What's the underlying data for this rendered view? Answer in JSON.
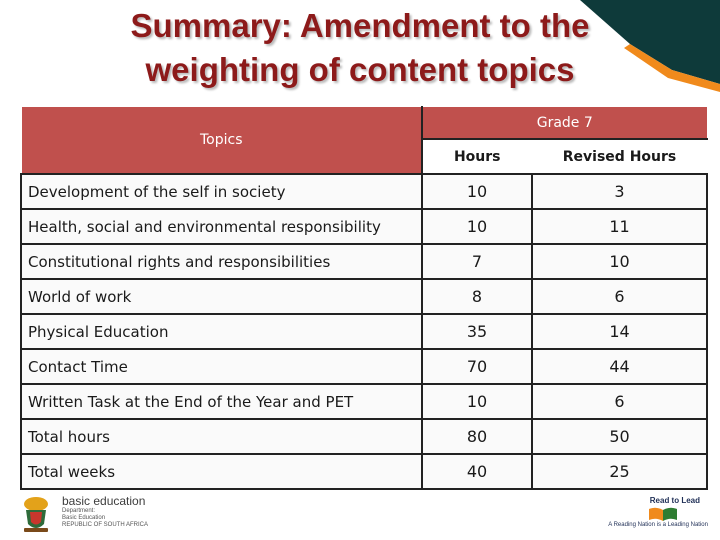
{
  "title": {
    "line1": "Summary: Amendment to the",
    "line2": "weighting of content  topics"
  },
  "table": {
    "header_topics": "Topics",
    "header_grade": "Grade 7",
    "header_hours": "Hours",
    "header_revised": "Revised Hours",
    "rows": [
      {
        "topic": "Development of the self in society",
        "hours": "10",
        "revised": "3"
      },
      {
        "topic": "Health, social and environmental responsibility",
        "hours": "10",
        "revised": "11"
      },
      {
        "topic": "Constitutional rights and responsibilities",
        "hours": "7",
        "revised": "10"
      },
      {
        "topic": "World of work",
        "hours": "8",
        "revised": "6"
      },
      {
        "topic": "Physical Education",
        "hours": "35",
        "revised": "14"
      },
      {
        "topic": "Contact Time",
        "hours": "70",
        "revised": "44"
      },
      {
        "topic": "Written Task at the End of the Year  and PET",
        "hours": "10",
        "revised": "6"
      },
      {
        "topic": "Total hours",
        "hours": "80",
        "revised": "50"
      },
      {
        "topic": "Total weeks",
        "hours": "40",
        "revised": "25"
      }
    ]
  },
  "footer": {
    "logo_name": "basic education",
    "logo_line1": "Department:",
    "logo_line2": "Basic Education",
    "logo_line3": "REPUBLIC OF SOUTH AFRICA",
    "read_title": "Read to Lead",
    "read_tagline": "A Reading Nation is a Leading Nation"
  },
  "colors": {
    "header_fill": "#c0504d",
    "title_color": "#8d1a1a",
    "corner_dark": "#0e3a3a",
    "corner_orange": "#f08a1c"
  }
}
